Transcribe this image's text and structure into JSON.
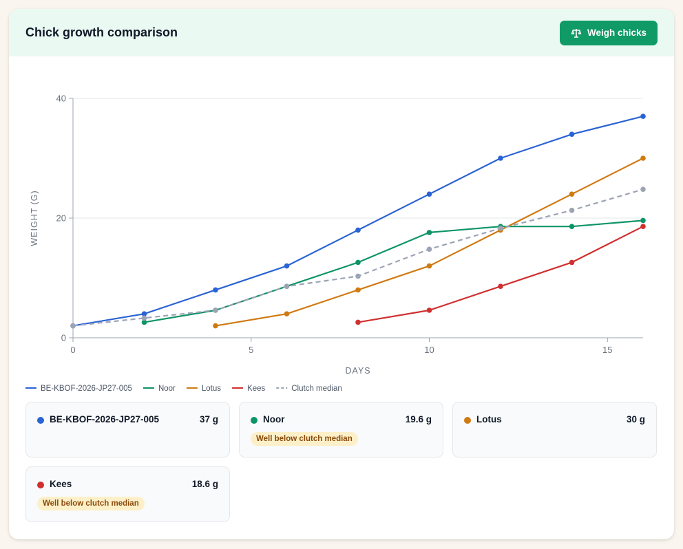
{
  "header": {
    "title": "Chick growth comparison",
    "weigh_button_label": "Weigh chicks",
    "weigh_button_icon": "scale-icon"
  },
  "chart_data": {
    "type": "line",
    "xlabel": "DAYS",
    "ylabel": "WEIGHT (G)",
    "xlim": [
      0,
      16
    ],
    "ylim": [
      0,
      40
    ],
    "x_ticks": [
      0,
      5,
      10,
      15
    ],
    "y_ticks": [
      0,
      20,
      40
    ],
    "grid": "horizontal",
    "legend_position": "bottom-left",
    "series": [
      {
        "name": "BE-KBOF-2026-JP27-005",
        "color": "#2a63d4",
        "dashed": false,
        "points": [
          [
            0,
            2
          ],
          [
            2,
            4
          ],
          [
            4,
            8
          ],
          [
            6,
            12
          ],
          [
            8,
            18
          ],
          [
            10,
            24
          ],
          [
            12,
            30
          ],
          [
            14,
            34
          ],
          [
            16,
            37
          ]
        ]
      },
      {
        "name": "Noor",
        "color": "#0d9466",
        "dashed": false,
        "points": [
          [
            2,
            2.6
          ],
          [
            4,
            4.6
          ],
          [
            6,
            8.6
          ],
          [
            8,
            12.6
          ],
          [
            10,
            17.6
          ],
          [
            12,
            18.6
          ],
          [
            14,
            18.6
          ],
          [
            16,
            19.6
          ]
        ]
      },
      {
        "name": "Lotus",
        "color": "#d07a12",
        "dashed": false,
        "points": [
          [
            4,
            2
          ],
          [
            6,
            4
          ],
          [
            8,
            8
          ],
          [
            10,
            12
          ],
          [
            12,
            18
          ],
          [
            14,
            24
          ],
          [
            16,
            30
          ]
        ]
      },
      {
        "name": "Kees",
        "color": "#d03030",
        "dashed": false,
        "points": [
          [
            8,
            2.6
          ],
          [
            10,
            4.6
          ],
          [
            12,
            8.6
          ],
          [
            14,
            12.6
          ],
          [
            16,
            18.6
          ]
        ]
      },
      {
        "name": "Clutch median",
        "color": "#9ca3b4",
        "dashed": true,
        "points": [
          [
            0,
            2
          ],
          [
            2,
            3.3
          ],
          [
            4,
            4.6
          ],
          [
            6,
            8.6
          ],
          [
            8,
            10.3
          ],
          [
            10,
            14.8
          ],
          [
            12,
            18.3
          ],
          [
            14,
            21.3
          ],
          [
            16,
            24.8
          ]
        ]
      }
    ]
  },
  "summary": [
    {
      "name": "BE-KBOF-2026-JP27-005",
      "weight": "37 g",
      "color": "#2a63d4",
      "badge": ""
    },
    {
      "name": "Noor",
      "weight": "19.6 g",
      "color": "#0d9466",
      "badge": "Well below clutch median"
    },
    {
      "name": "Lotus",
      "weight": "30 g",
      "color": "#d07a12",
      "badge": ""
    },
    {
      "name": "Kees",
      "weight": "18.6 g",
      "color": "#d03030",
      "badge": "Well below clutch median"
    }
  ]
}
